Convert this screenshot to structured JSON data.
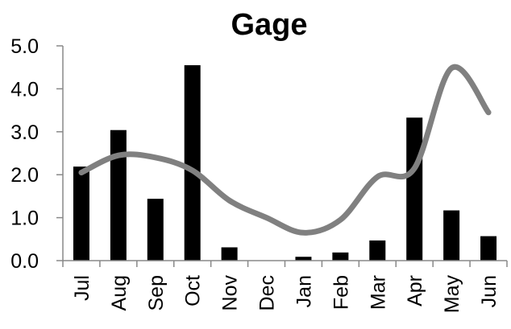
{
  "chart_data": {
    "type": "bar",
    "title": "Gage",
    "xlabel": "",
    "ylabel": "",
    "categories": [
      "Jul",
      "Aug",
      "Sep",
      "Oct",
      "Nov",
      "Dec",
      "Jan",
      "Feb",
      "Mar",
      "Apr",
      "May",
      "Jun"
    ],
    "ylim": [
      0,
      5
    ],
    "yticks": [
      "0.0",
      "1.0",
      "2.0",
      "3.0",
      "4.0",
      "5.0"
    ],
    "grid": false,
    "legend": "none",
    "series": [
      {
        "type": "bar",
        "color": "#000000",
        "values": [
          2.18,
          3.03,
          1.43,
          4.54,
          0.3,
          0.0,
          0.08,
          0.18,
          0.46,
          3.32,
          1.16,
          0.56
        ]
      },
      {
        "type": "line",
        "color": "#808080",
        "smooth": true,
        "values": [
          2.05,
          2.45,
          2.4,
          2.1,
          1.4,
          1.0,
          0.65,
          0.95,
          1.95,
          2.15,
          4.48,
          3.45
        ]
      }
    ]
  }
}
